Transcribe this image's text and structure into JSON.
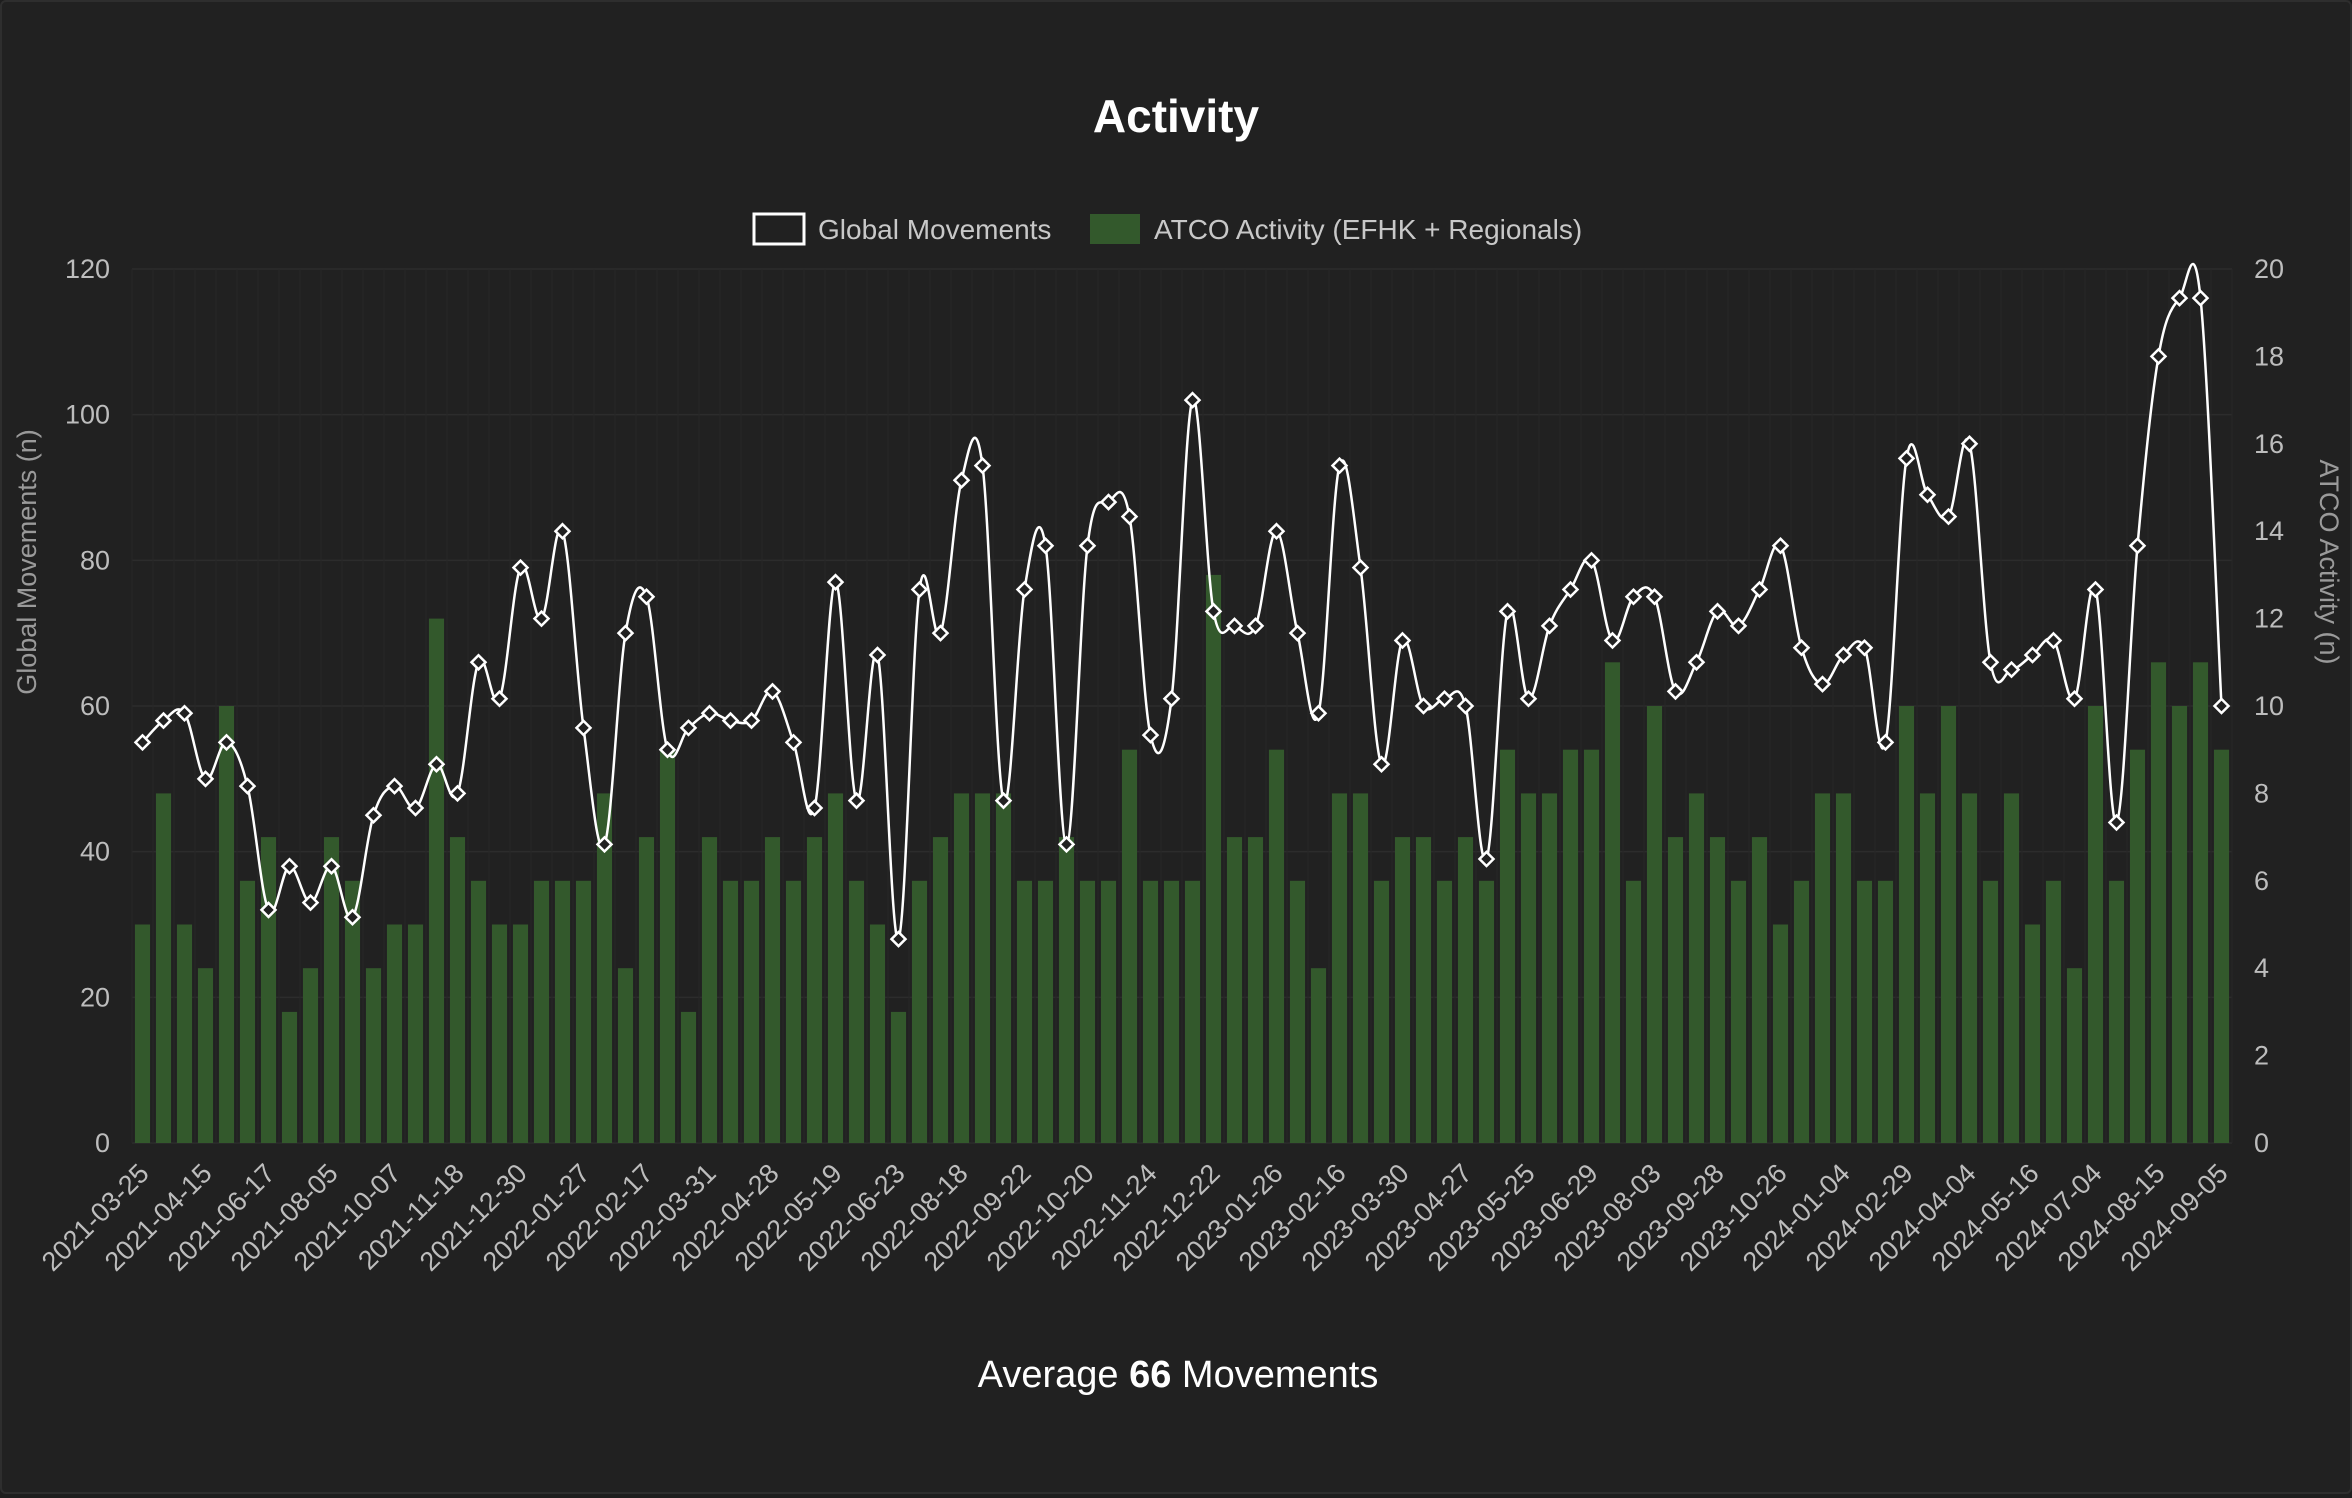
{
  "chart_data": {
    "type": "bar",
    "title": "Activity",
    "legend_position": "top",
    "grid": true,
    "y_left": {
      "label": "Global Movements (n)",
      "lim": [
        0,
        120
      ],
      "ticks": [
        0,
        20,
        40,
        60,
        80,
        100,
        120
      ]
    },
    "y_right": {
      "label": "ATCO Activity (n)",
      "lim": [
        0,
        20
      ],
      "ticks": [
        0,
        2,
        4,
        6,
        8,
        10,
        12,
        14,
        16,
        18,
        20
      ]
    },
    "x_tick_labels": [
      "2021-03-25",
      "2021-04-15",
      "2021-06-17",
      "2021-08-05",
      "2021-10-07",
      "2021-11-18",
      "2021-12-30",
      "2022-01-27",
      "2022-02-17",
      "2022-03-31",
      "2022-04-28",
      "2022-05-19",
      "2022-06-23",
      "2022-08-18",
      "2022-09-22",
      "2022-10-20",
      "2022-11-24",
      "2022-12-22",
      "2023-01-26",
      "2023-02-16",
      "2023-03-30",
      "2023-04-27",
      "2023-05-25",
      "2023-06-29",
      "2023-08-03",
      "2023-09-28",
      "2023-10-26",
      "2024-01-04",
      "2024-02-29",
      "2024-04-04",
      "2024-05-16",
      "2024-07-04",
      "2024-08-15",
      "2024-09-05"
    ],
    "series": [
      {
        "name": "Global Movements",
        "type": "line",
        "axis": "left",
        "color": "#ffffff",
        "values": [
          55,
          58,
          59,
          50,
          55,
          49,
          32,
          38,
          33,
          38,
          31,
          45,
          49,
          46,
          52,
          48,
          66,
          61,
          79,
          72,
          84,
          57,
          41,
          70,
          75,
          54,
          57,
          59,
          58,
          58,
          62,
          55,
          46,
          77,
          47,
          67,
          28,
          76,
          70,
          91,
          93,
          47,
          76,
          82,
          41,
          82,
          88,
          86,
          56,
          61,
          102,
          73,
          71,
          71,
          84,
          70,
          59,
          93,
          79,
          52,
          69,
          60,
          61,
          60,
          39,
          73,
          61,
          71,
          76,
          80,
          69,
          75,
          75,
          62,
          66,
          73,
          71,
          76,
          82,
          68,
          63,
          67,
          68,
          55,
          94,
          89,
          86,
          96,
          66,
          65,
          67,
          69,
          61,
          76,
          44,
          82,
          108,
          116,
          116,
          60
        ]
      },
      {
        "name": "ATCO Activity (EFHK + Regionals)",
        "type": "bar",
        "axis": "right",
        "color": "#33592c",
        "values": [
          5,
          8,
          5,
          4,
          10,
          6,
          7,
          3,
          4,
          7,
          6,
          4,
          5,
          5,
          12,
          7,
          6,
          5,
          5,
          6,
          6,
          6,
          8,
          4,
          7,
          9,
          3,
          7,
          6,
          6,
          7,
          6,
          7,
          8,
          6,
          5,
          3,
          6,
          7,
          8,
          8,
          8,
          6,
          6,
          7,
          6,
          6,
          9,
          6,
          6,
          6,
          13,
          7,
          7,
          9,
          6,
          4,
          8,
          8,
          6,
          7,
          7,
          6,
          7,
          6,
          9,
          8,
          8,
          9,
          9,
          11,
          6,
          10,
          7,
          8,
          7,
          6,
          7,
          5,
          6,
          8,
          8,
          6,
          6,
          10,
          8,
          10,
          8,
          6,
          8,
          5,
          6,
          4,
          10,
          6,
          9,
          11,
          10,
          11,
          9
        ]
      }
    ]
  },
  "footer": {
    "prefix": "Average",
    "value": "66",
    "suffix": "Movements"
  }
}
